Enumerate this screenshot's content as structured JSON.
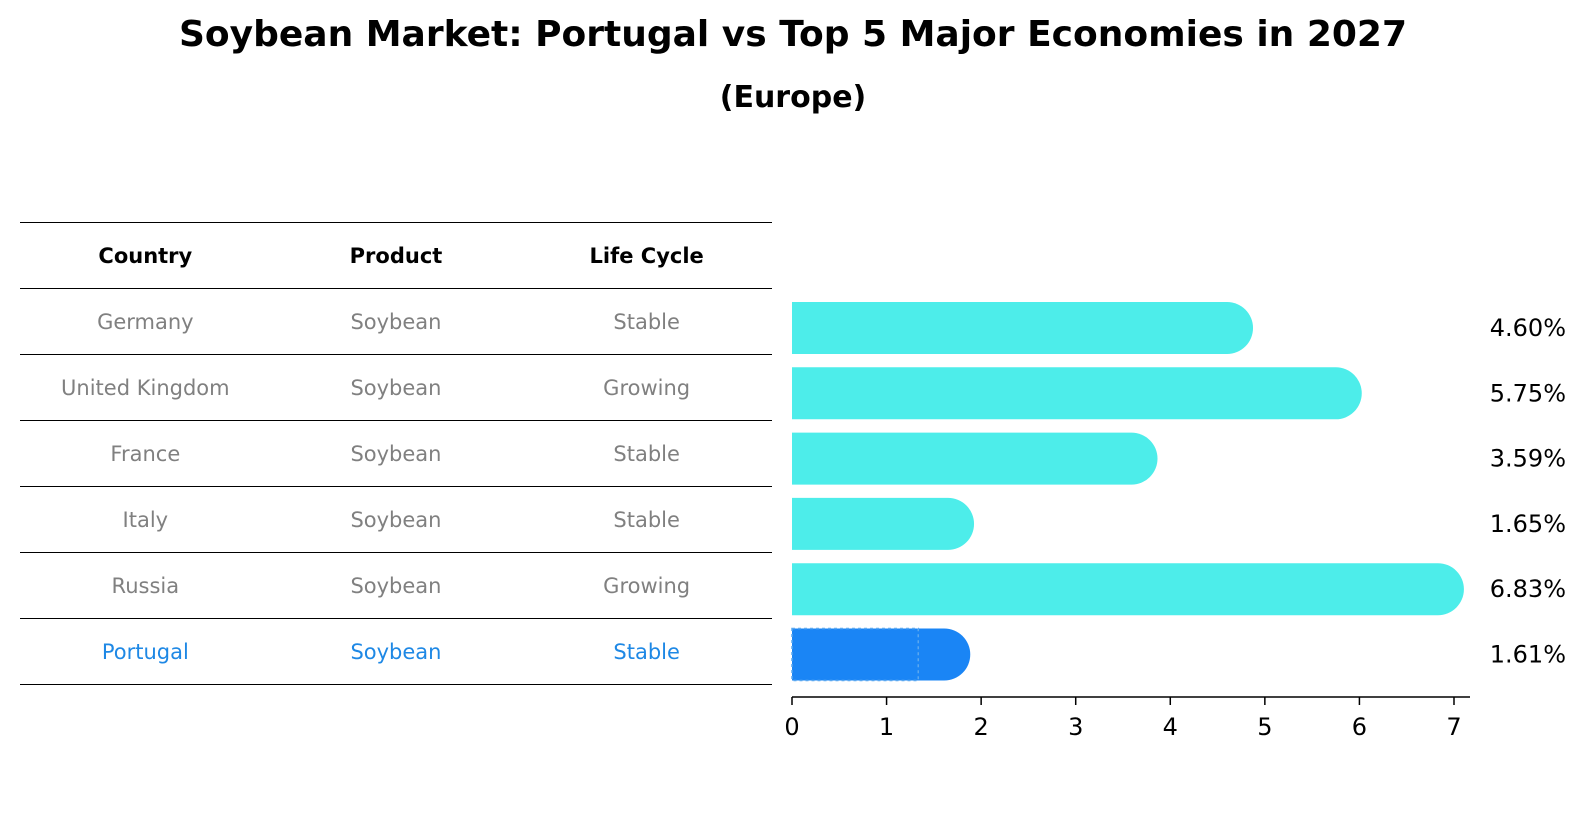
{
  "chart_data": {
    "type": "bar",
    "orientation": "horizontal",
    "title": "Soybean Market: Portugal vs Top 5 Major Economies in 2027",
    "subtitle": "(Europe)",
    "table": {
      "headers": [
        "Country",
        "Product",
        "Life Cycle"
      ],
      "rows": [
        {
          "country": "Germany",
          "product": "Soybean",
          "life_cycle": "Stable"
        },
        {
          "country": "United Kingdom",
          "product": "Soybean",
          "life_cycle": "Growing"
        },
        {
          "country": "France",
          "product": "Soybean",
          "life_cycle": "Stable"
        },
        {
          "country": "Italy",
          "product": "Soybean",
          "life_cycle": "Stable"
        },
        {
          "country": "Russia",
          "product": "Soybean",
          "life_cycle": "Growing"
        },
        {
          "country": "Portugal",
          "product": "Soybean",
          "life_cycle": "Stable"
        }
      ]
    },
    "categories": [
      "Germany",
      "United Kingdom",
      "France",
      "Italy",
      "Russia",
      "Portugal"
    ],
    "values": [
      4.6,
      5.75,
      3.59,
      1.65,
      6.83,
      1.61
    ],
    "value_labels": [
      "4.60%",
      "5.75%",
      "3.59%",
      "1.65%",
      "6.83%",
      "1.61%"
    ],
    "highlight": "Portugal",
    "xlim": [
      0,
      7.2
    ],
    "xticks": [
      0,
      1,
      2,
      3,
      4,
      5,
      6,
      7
    ],
    "xlabel": "",
    "ylabel": "",
    "grid": false,
    "colors": {
      "bar": "#4dedea",
      "highlight": "#1a85f5",
      "highlight_text": "#1e88e5",
      "muted_text": "#808080",
      "text": "#000000"
    }
  }
}
